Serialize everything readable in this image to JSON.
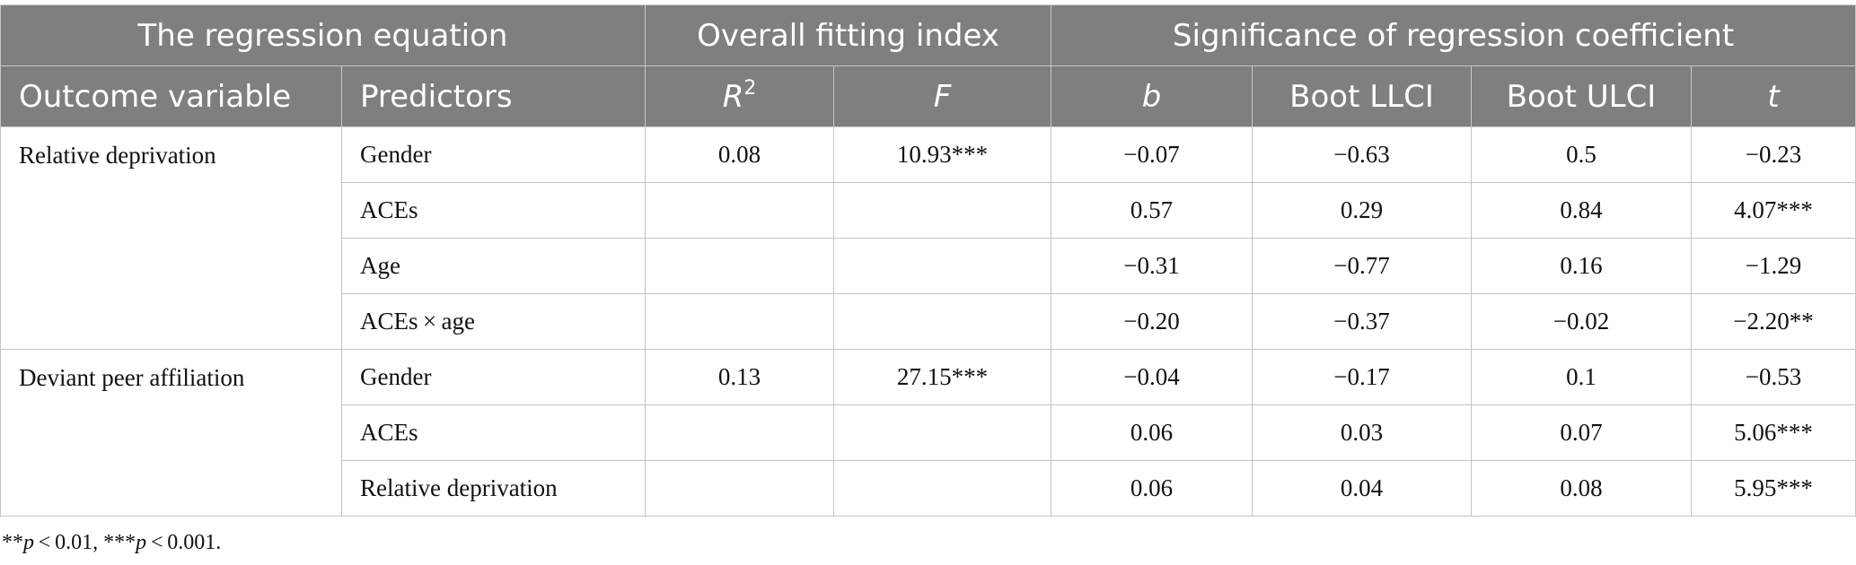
{
  "header": {
    "group_equation": "The regression equation",
    "group_fit": "Overall fitting index",
    "group_coef": "Significance of regression coefficient",
    "col_outcome": "Outcome variable",
    "col_predictors": "Predictors",
    "col_r_base": "R",
    "col_r_sup": "2",
    "col_f": "F",
    "col_b": "b",
    "col_llci": "Boot LLCI",
    "col_ulci": "Boot ULCI",
    "col_t": "t"
  },
  "groups": [
    {
      "outcome": "Relative deprivation",
      "r2": "0.08",
      "f": "10.93***",
      "rows": [
        {
          "predictor": "Gender",
          "b": "−0.07",
          "llci": "−0.63",
          "ulci": "0.5",
          "t": "−0.23"
        },
        {
          "predictor": "ACEs",
          "b": "0.57",
          "llci": "0.29",
          "ulci": "0.84",
          "t": "4.07***"
        },
        {
          "predictor": "Age",
          "b": "−0.31",
          "llci": "−0.77",
          "ulci": "0.16",
          "t": "−1.29"
        },
        {
          "predictor": "ACEs × age",
          "b": "−0.20",
          "llci": "−0.37",
          "ulci": "−0.02",
          "t": "−2.20**"
        }
      ]
    },
    {
      "outcome": "Deviant peer affiliation",
      "r2": "0.13",
      "f": "27.15***",
      "rows": [
        {
          "predictor": "Gender",
          "b": "−0.04",
          "llci": "−0.17",
          "ulci": "0.1",
          "t": "−0.53"
        },
        {
          "predictor": "ACEs",
          "b": "0.06",
          "llci": "0.03",
          "ulci": "0.07",
          "t": "5.06***"
        },
        {
          "predictor": "Relative deprivation",
          "b": "0.06",
          "llci": "0.04",
          "ulci": "0.08",
          "t": "5.95***"
        }
      ]
    }
  ],
  "footnote": {
    "stars1": "**",
    "p1": "p",
    "text1": " < 0.01, ***",
    "p2": "p",
    "text2": " < 0.001."
  }
}
